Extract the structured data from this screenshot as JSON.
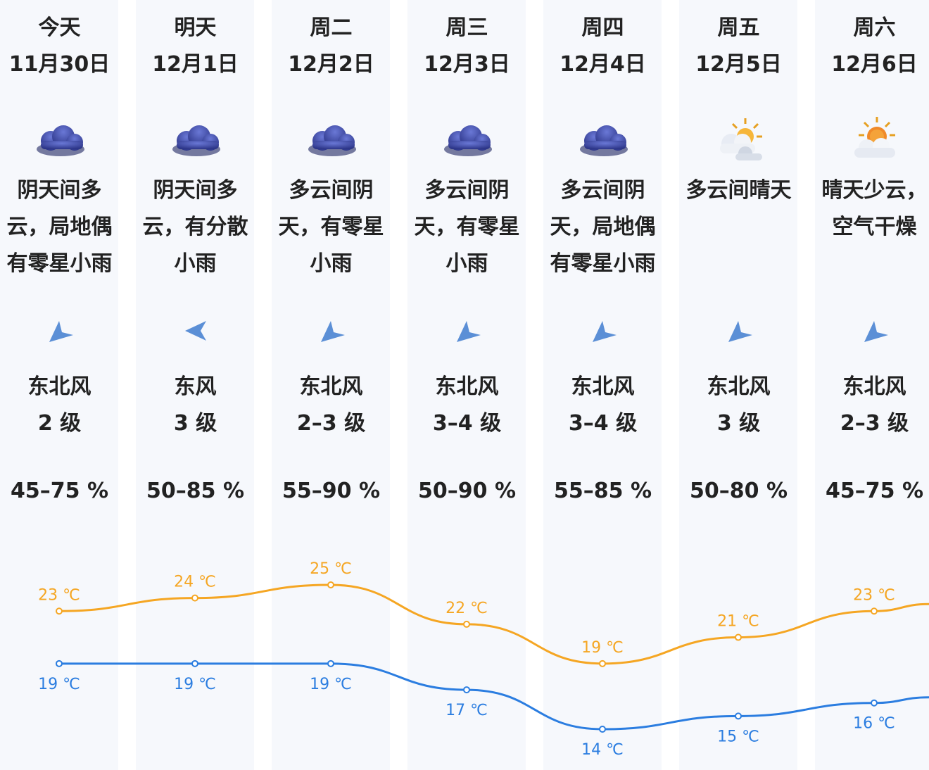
{
  "days": [
    {
      "day": "今天",
      "date": "11月30日",
      "icon": "cloudy-icon",
      "desc": "阴天间多\n云，局地偶\n有零星小雨",
      "wind_dir": "东北风",
      "wind_level": "2 级",
      "humidity": "45–75 %",
      "wind_arrow": "northeast-arrow"
    },
    {
      "day": "明天",
      "date": "12月1日",
      "icon": "cloudy-icon",
      "desc": "阴天间多\n云，有分散\n小雨",
      "wind_dir": "东风",
      "wind_level": "3 级",
      "humidity": "50–85 %",
      "wind_arrow": "east-arrow"
    },
    {
      "day": "周二",
      "date": "12月2日",
      "icon": "cloudy-icon",
      "desc": "多云间阴\n天，有零星\n小雨",
      "wind_dir": "东北风",
      "wind_level": "2–3 级",
      "humidity": "55–90 %",
      "wind_arrow": "northeast-arrow"
    },
    {
      "day": "周三",
      "date": "12月3日",
      "icon": "cloudy-icon",
      "desc": "多云间阴\n天，有零星\n小雨",
      "wind_dir": "东北风",
      "wind_level": "3–4 级",
      "humidity": "50–90 %",
      "wind_arrow": "northeast-arrow"
    },
    {
      "day": "周四",
      "date": "12月4日",
      "icon": "cloudy-icon",
      "desc": "多云间阴\n天，局地偶\n有零星小雨",
      "wind_dir": "东北风",
      "wind_level": "3–4 级",
      "humidity": "55–85 %",
      "wind_arrow": "northeast-arrow"
    },
    {
      "day": "周五",
      "date": "12月5日",
      "icon": "partly-cloudy-icon",
      "desc": "多云间晴天",
      "wind_dir": "东北风",
      "wind_level": "3 级",
      "humidity": "50–80 %",
      "wind_arrow": "northeast-arrow"
    },
    {
      "day": "周六",
      "date": "12月6日",
      "icon": "sunny-cloud-icon",
      "desc": "晴天少云，\n空气干燥",
      "wind_dir": "东北风",
      "wind_level": "2–3 级",
      "humidity": "45–75 %",
      "wind_arrow": "northeast-arrow"
    }
  ],
  "chart_data": {
    "type": "line",
    "categories": [
      "11月30日",
      "12月1日",
      "12月2日",
      "12月3日",
      "12月4日",
      "12月5日",
      "12月6日"
    ],
    "unit": "℃",
    "series": [
      {
        "values": [
          23,
          24,
          25,
          22,
          19,
          21,
          23
        ],
        "color": "#f5a623"
      },
      {
        "values": [
          19,
          19,
          19,
          17,
          14,
          15,
          16
        ],
        "color": "#2b7de0"
      }
    ],
    "high_labels": [
      "23 ℃",
      "24 ℃",
      "25 ℃",
      "22 ℃",
      "19 ℃",
      "21 ℃",
      "23 ℃"
    ],
    "low_labels": [
      "19 ℃",
      "19 ℃",
      "19 ℃",
      "17 ℃",
      "14 ℃",
      "15 ℃",
      "16 ℃"
    ]
  },
  "colors": {
    "stripe": "#f6f8fc",
    "high": "#f5a623",
    "low": "#2b7de0",
    "cloud": "#3a4aa8",
    "arrow": "#5b8fd6"
  }
}
